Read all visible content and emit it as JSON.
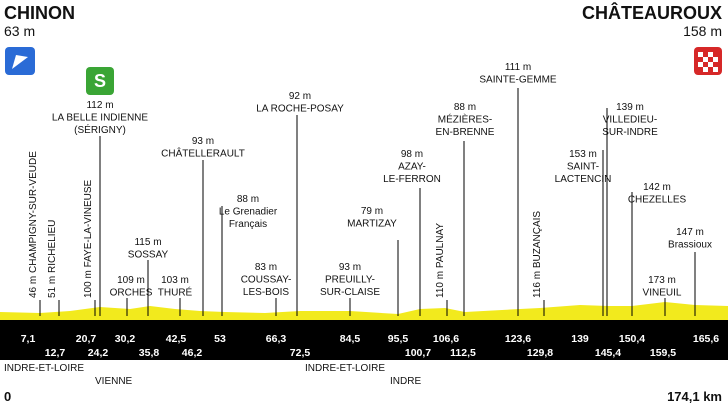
{
  "start": {
    "name": "CHINON",
    "altitude": "63 m"
  },
  "finish": {
    "name": "CHÂTEAUROUX",
    "altitude": "158 m"
  },
  "points": [
    {
      "altitude": "46 m",
      "name": [
        "CHAMPIGNY-SUR-VEUDE"
      ],
      "km": "7,1"
    },
    {
      "altitude": "51 m",
      "name": [
        "RICHELIEU"
      ],
      "km": "12,7"
    },
    {
      "altitude": "100 m",
      "name": [
        "FAYE-LA-VINEUSE"
      ],
      "km": "20,7"
    },
    {
      "altitude": "112 m",
      "name": [
        "LA BELLE INDIENNE",
        "(SÉRIGNY)"
      ],
      "km": "24,2"
    },
    {
      "altitude": "109 m",
      "name": [
        "ORCHES"
      ],
      "km": "30,2"
    },
    {
      "altitude": "115 m",
      "name": [
        "SOSSAY"
      ],
      "km": "35,8"
    },
    {
      "altitude": "103 m",
      "name": [
        "THURÉ"
      ],
      "km": "42,5"
    },
    {
      "altitude": "93 m",
      "name": [
        "CHÂTELLERAULT"
      ],
      "km": "46,2"
    },
    {
      "altitude": "88 m",
      "name": [
        "Le Grenadier",
        "Français"
      ],
      "km": "53"
    },
    {
      "altitude": "83 m",
      "name": [
        "COUSSAY-",
        "LES-BOIS"
      ],
      "km": "66,3"
    },
    {
      "altitude": "92 m",
      "name": [
        "LA ROCHE-POSAY"
      ],
      "km": "72,5"
    },
    {
      "altitude": "93 m",
      "name": [
        "PREUILLY-",
        "SUR-CLAISE"
      ],
      "km": "84,5"
    },
    {
      "altitude": "79 m",
      "name": [
        "MARTIZAY"
      ],
      "km": "95,5"
    },
    {
      "altitude": "98 m",
      "name": [
        "AZAY-",
        "LE-FERRON"
      ],
      "km": "100,7"
    },
    {
      "altitude": "110 m",
      "name": [
        "PAULNAY"
      ],
      "km": "106,6"
    },
    {
      "altitude": "88 m",
      "name": [
        "MÉZIÈRES-",
        "EN-BRENNE"
      ],
      "km": "112,5"
    },
    {
      "altitude": "111 m",
      "name": [
        "SAINTE-GEMME"
      ],
      "km": "123,6"
    },
    {
      "altitude": "116 m",
      "name": [
        "BUZANÇAIS"
      ],
      "km": "129,8"
    },
    {
      "altitude": "153 m",
      "name": [
        "SAINT-",
        "LACTENCIN"
      ],
      "km": "139"
    },
    {
      "altitude": "139 m",
      "name": [
        "VILLEDIEU-",
        "SUR-INDRE"
      ],
      "km": "145,4"
    },
    {
      "altitude": "142 m",
      "name": [
        "CHEZELLES"
      ],
      "km": "150,4"
    },
    {
      "altitude": "173 m",
      "name": [
        "VINEUIL"
      ],
      "km": "159,5"
    },
    {
      "altitude": "147 m",
      "name": [
        "Brassioux"
      ],
      "km": "165,6"
    }
  ],
  "regions": [
    "INDRE-ET-LOIRE",
    "VIENNE",
    "INDRE-ET-LOIRE",
    "INDRE"
  ],
  "distance": {
    "start": "0",
    "end": "174,1 km"
  }
}
